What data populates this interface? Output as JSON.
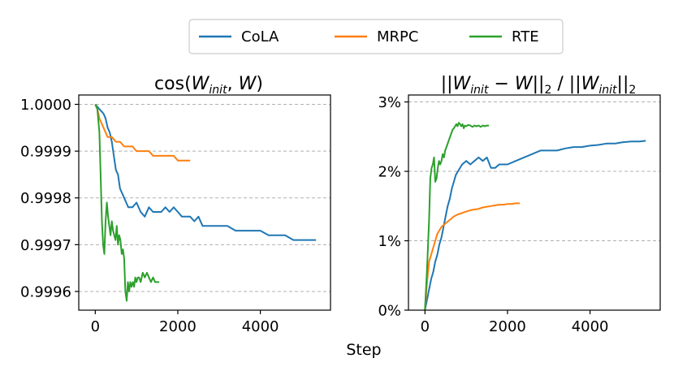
{
  "legend": [
    {
      "label": "CoLA",
      "color": "#1f77b4"
    },
    {
      "label": "MRPC",
      "color": "#ff7f0e"
    },
    {
      "label": "RTE",
      "color": "#2ca02c"
    }
  ],
  "xlabel": "Step",
  "chart_data": [
    {
      "type": "line",
      "title": "cos(W_init, W)",
      "title_parts": {
        "prefix": "cos(",
        "w1": "W",
        "sub1": "init",
        "sep": ", ",
        "w2": "W",
        "suffix": ")"
      },
      "xlabel": "Step",
      "ylabel": "",
      "xlim": [
        -400,
        5700
      ],
      "ylim": [
        0.99956,
        1.00002
      ],
      "xticks": [
        0,
        2000,
        4000
      ],
      "xtick_labels": [
        "0",
        "2000",
        "4000"
      ],
      "yticks": [
        0.9996,
        0.9997,
        0.9998,
        0.9999,
        1.0
      ],
      "ytick_labels": [
        "0.9996",
        "0.9997",
        "0.9998",
        "0.9999",
        "1.0000"
      ],
      "ygrid": true,
      "series": [
        {
          "name": "CoLA",
          "color": "#1f77b4",
          "x": [
            0,
            100,
            200,
            250,
            300,
            350,
            400,
            450,
            500,
            550,
            600,
            650,
            700,
            750,
            800,
            900,
            1000,
            1100,
            1200,
            1300,
            1400,
            1500,
            1600,
            1700,
            1800,
            1900,
            2000,
            2100,
            2200,
            2300,
            2400,
            2500,
            2600,
            2800,
            3000,
            3200,
            3400,
            3600,
            3800,
            4000,
            4200,
            4400,
            4600,
            4800,
            5000,
            5200,
            5350
          ],
          "y": [
            1.0,
            0.99999,
            0.99998,
            0.99997,
            0.99995,
            0.99994,
            0.99992,
            0.99989,
            0.99986,
            0.99985,
            0.99982,
            0.99981,
            0.9998,
            0.99979,
            0.99978,
            0.99978,
            0.99979,
            0.99977,
            0.99976,
            0.99978,
            0.99977,
            0.99977,
            0.99977,
            0.99978,
            0.99977,
            0.99978,
            0.99977,
            0.99976,
            0.99976,
            0.99976,
            0.99975,
            0.99976,
            0.99974,
            0.99974,
            0.99974,
            0.99974,
            0.99973,
            0.99973,
            0.99973,
            0.99973,
            0.99972,
            0.99972,
            0.99972,
            0.99971,
            0.99971,
            0.99971,
            0.99971
          ]
        },
        {
          "name": "MRPC",
          "color": "#ff7f0e",
          "x": [
            0,
            50,
            100,
            150,
            200,
            250,
            300,
            400,
            500,
            600,
            700,
            800,
            900,
            1000,
            1100,
            1200,
            1300,
            1400,
            1500,
            1600,
            1700,
            1800,
            1900,
            2000,
            2100,
            2200,
            2300
          ],
          "y": [
            1.0,
            0.99999,
            0.99997,
            0.99996,
            0.99995,
            0.99994,
            0.99993,
            0.99993,
            0.99992,
            0.99992,
            0.99991,
            0.99991,
            0.99991,
            0.9999,
            0.9999,
            0.9999,
            0.9999,
            0.99989,
            0.99989,
            0.99989,
            0.99989,
            0.99989,
            0.99989,
            0.99988,
            0.99988,
            0.99988,
            0.99988
          ]
        },
        {
          "name": "RTE",
          "color": "#2ca02c",
          "x": [
            0,
            50,
            100,
            130,
            160,
            190,
            220,
            250,
            280,
            310,
            340,
            370,
            400,
            430,
            460,
            490,
            520,
            550,
            580,
            610,
            640,
            670,
            700,
            730,
            760,
            790,
            820,
            850,
            880,
            910,
            940,
            970,
            1000,
            1030,
            1060,
            1100,
            1150,
            1200,
            1250,
            1300,
            1350,
            1400,
            1450,
            1500,
            1550
          ],
          "y": [
            1.0,
            0.99999,
            0.99994,
            0.99985,
            0.99975,
            0.9997,
            0.99968,
            0.99975,
            0.99979,
            0.99976,
            0.99974,
            0.99972,
            0.99975,
            0.99973,
            0.99972,
            0.99971,
            0.99974,
            0.9997,
            0.99972,
            0.99971,
            0.99968,
            0.99969,
            0.99967,
            0.9996,
            0.99958,
            0.99962,
            0.9996,
            0.99962,
            0.99961,
            0.99962,
            0.99961,
            0.99963,
            0.99962,
            0.99963,
            0.99963,
            0.99962,
            0.99964,
            0.99963,
            0.99964,
            0.99963,
            0.99962,
            0.99963,
            0.99962,
            0.99962,
            0.99962
          ]
        }
      ]
    },
    {
      "type": "line",
      "title": "||W_init − W||2 / ||W_init||2",
      "title_parts": {
        "open": "||",
        "w1": "W",
        "sub1": "init",
        "minus": " − ",
        "w2": "W",
        "close": "||",
        "sub2": "2",
        "div": " / ",
        "open2": "||",
        "w3": "W",
        "sub3": "init",
        "close2": "||",
        "sub4": "2"
      },
      "xlabel": "Step",
      "ylabel": "",
      "xlim": [
        -400,
        5700
      ],
      "ylim": [
        0,
        3.1
      ],
      "xticks": [
        0,
        2000,
        4000
      ],
      "xtick_labels": [
        "0",
        "2000",
        "4000"
      ],
      "yticks": [
        0,
        1,
        2,
        3
      ],
      "ytick_labels": [
        "0%",
        "1%",
        "2%",
        "3%"
      ],
      "ygrid": true,
      "series": [
        {
          "name": "CoLA",
          "color": "#1f77b4",
          "x": [
            0,
            50,
            100,
            150,
            200,
            250,
            300,
            350,
            400,
            450,
            500,
            550,
            600,
            650,
            700,
            750,
            800,
            900,
            1000,
            1100,
            1200,
            1300,
            1400,
            1500,
            1600,
            1700,
            1800,
            1900,
            2000,
            2200,
            2400,
            2600,
            2800,
            3000,
            3200,
            3400,
            3600,
            3800,
            4000,
            4200,
            4400,
            4600,
            4800,
            5000,
            5200,
            5350
          ],
          "y": [
            0,
            0.15,
            0.3,
            0.45,
            0.55,
            0.7,
            0.8,
            0.95,
            1.05,
            1.2,
            1.35,
            1.5,
            1.6,
            1.75,
            1.85,
            1.95,
            2.0,
            2.1,
            2.15,
            2.1,
            2.15,
            2.2,
            2.15,
            2.2,
            2.05,
            2.05,
            2.1,
            2.1,
            2.1,
            2.15,
            2.2,
            2.25,
            2.3,
            2.3,
            2.3,
            2.33,
            2.35,
            2.35,
            2.37,
            2.38,
            2.4,
            2.4,
            2.42,
            2.43,
            2.43,
            2.44
          ]
        },
        {
          "name": "MRPC",
          "color": "#ff7f0e",
          "x": [
            0,
            50,
            100,
            150,
            200,
            250,
            300,
            350,
            400,
            500,
            600,
            700,
            800,
            900,
            1000,
            1100,
            1200,
            1300,
            1400,
            1500,
            1600,
            1700,
            1800,
            1900,
            2000,
            2100,
            2200,
            2300
          ],
          "y": [
            0,
            0.4,
            0.7,
            0.8,
            0.9,
            1.0,
            1.1,
            1.15,
            1.2,
            1.25,
            1.3,
            1.35,
            1.38,
            1.4,
            1.42,
            1.44,
            1.45,
            1.46,
            1.48,
            1.49,
            1.5,
            1.51,
            1.52,
            1.52,
            1.53,
            1.53,
            1.54,
            1.54
          ]
        },
        {
          "name": "RTE",
          "color": "#2ca02c",
          "x": [
            0,
            50,
            100,
            130,
            160,
            190,
            220,
            250,
            280,
            310,
            340,
            370,
            400,
            430,
            460,
            490,
            520,
            550,
            580,
            610,
            640,
            670,
            700,
            730,
            760,
            790,
            820,
            850,
            880,
            910,
            940,
            970,
            1000,
            1050,
            1100,
            1150,
            1200,
            1250,
            1300,
            1350,
            1400,
            1450,
            1500,
            1550
          ],
          "y": [
            0,
            0.6,
            1.3,
            1.9,
            2.05,
            2.1,
            2.2,
            1.85,
            1.9,
            2.05,
            2.15,
            2.1,
            2.15,
            2.25,
            2.2,
            2.3,
            2.35,
            2.4,
            2.45,
            2.5,
            2.55,
            2.6,
            2.62,
            2.65,
            2.68,
            2.65,
            2.7,
            2.68,
            2.65,
            2.68,
            2.62,
            2.66,
            2.65,
            2.67,
            2.66,
            2.64,
            2.66,
            2.65,
            2.66,
            2.64,
            2.66,
            2.65,
            2.66,
            2.66
          ]
        }
      ]
    }
  ]
}
